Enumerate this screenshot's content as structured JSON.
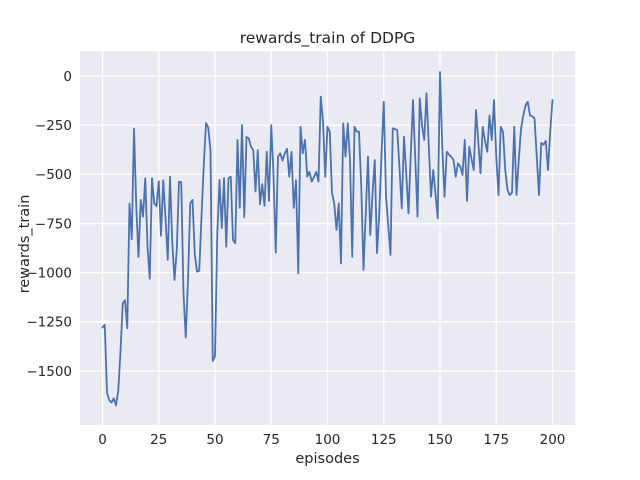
{
  "chart_data": {
    "type": "line",
    "title": "rewards_train of DDPG",
    "xlabel": "episodes",
    "ylabel": "rewards_train",
    "x_start": 0,
    "x_step": 1,
    "values": [
      -1278,
      -1265,
      -1610,
      -1648,
      -1660,
      -1638,
      -1675,
      -1600,
      -1400,
      -1155,
      -1140,
      -1282,
      -648,
      -830,
      -268,
      -660,
      -920,
      -630,
      -715,
      -520,
      -868,
      -1030,
      -520,
      -648,
      -662,
      -535,
      -812,
      -530,
      -723,
      -935,
      -512,
      -845,
      -1037,
      -885,
      -537,
      -540,
      -1105,
      -1330,
      -1037,
      -647,
      -630,
      -902,
      -995,
      -990,
      -715,
      -455,
      -240,
      -262,
      -380,
      -1448,
      -1425,
      -808,
      -529,
      -773,
      -519,
      -868,
      -519,
      -512,
      -834,
      -850,
      -325,
      -670,
      -250,
      -717,
      -310,
      -317,
      -360,
      -377,
      -587,
      -377,
      -652,
      -550,
      -660,
      -385,
      -635,
      -250,
      -500,
      -898,
      -410,
      -393,
      -430,
      -393,
      -370,
      -512,
      -385,
      -670,
      -530,
      -1003,
      -258,
      -393,
      -325,
      -512,
      -487,
      -537,
      -512,
      -487,
      -537,
      -105,
      -232,
      -512,
      -258,
      -283,
      -594,
      -650,
      -782,
      -647,
      -953,
      -241,
      -410,
      -241,
      -427,
      -919,
      -258,
      -283,
      -283,
      -560,
      -986,
      -700,
      -410,
      -808,
      -600,
      -427,
      -900,
      -700,
      -400,
      -131,
      -610,
      -760,
      -910,
      -266,
      -270,
      -275,
      -470,
      -673,
      -309,
      -500,
      -698,
      -400,
      -122,
      -420,
      -715,
      -113,
      -250,
      -325,
      -88,
      -350,
      -614,
      -478,
      -600,
      -724,
      20,
      -360,
      -614,
      -385,
      -400,
      -410,
      -427,
      -512,
      -444,
      -460,
      -503,
      -325,
      -635,
      -360,
      -420,
      -478,
      -173,
      -330,
      -495,
      -258,
      -330,
      -385,
      -201,
      -325,
      -122,
      -410,
      -605,
      -258,
      -283,
      -478,
      -580,
      -605,
      -593,
      -258,
      -605,
      -430,
      -270,
      -201,
      -150,
      -131,
      -201,
      -205,
      -215,
      -410,
      -605,
      -340,
      -350,
      -330,
      -478,
      -280,
      -122
    ],
    "x_ticks": [
      0,
      25,
      50,
      75,
      100,
      125,
      150,
      175,
      200
    ],
    "y_ticks": [
      0,
      -250,
      -500,
      -750,
      -1000,
      -1250,
      -1500
    ],
    "xlim": [
      -10,
      210
    ],
    "ylim": [
      -1774,
      127
    ],
    "grid": true,
    "legend": "none",
    "colors": {
      "figure_background": "#ffffff",
      "axes_background": "#eaeaf2",
      "grid": "#ffffff",
      "line": "#4c72b0",
      "text": "#262626"
    }
  }
}
